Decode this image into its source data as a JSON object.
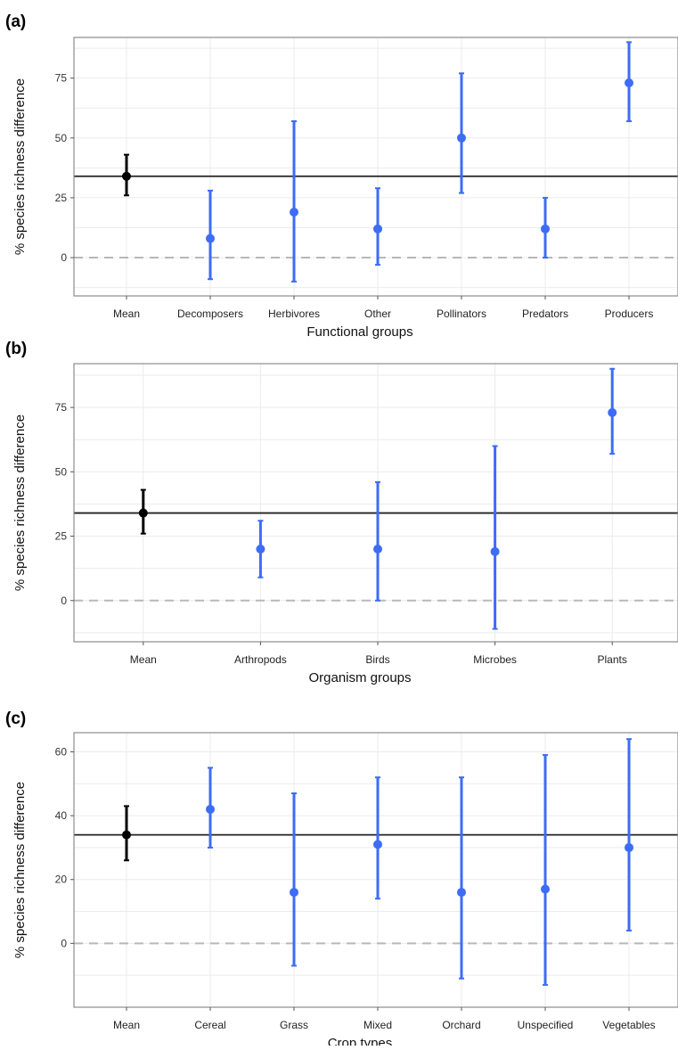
{
  "colors": {
    "mean": "#000000",
    "group": "#3d6cf5",
    "reference_line": "#222222",
    "zero_line": "#b8b8b8",
    "grid": "#ebebeb",
    "frame": "#8c8c8c"
  },
  "chart_data": [
    {
      "type": "scatter",
      "panel_label": "(a)",
      "title": "",
      "xlabel": "Functional groups",
      "ylabel": "% species richness difference",
      "ylim": [
        -16,
        92
      ],
      "yticks": [
        0,
        25,
        50,
        75
      ],
      "categories": [
        "Mean",
        "Decomposers",
        "Herbivores",
        "Other",
        "Pollinators",
        "Predators",
        "Producers"
      ],
      "values": [
        34,
        8,
        19,
        12,
        50,
        12,
        73
      ],
      "lower": [
        26,
        -9,
        -10,
        -3,
        27,
        0,
        57
      ],
      "upper": [
        43,
        28,
        57,
        29,
        77,
        25,
        90
      ],
      "mean_line": 34,
      "zero_line": 0,
      "grid": true,
      "legend": "none"
    },
    {
      "type": "scatter",
      "panel_label": "(b)",
      "title": "",
      "xlabel": "Organism groups",
      "ylabel": "% species richness difference",
      "ylim": [
        -16,
        92
      ],
      "yticks": [
        0,
        25,
        50,
        75
      ],
      "categories": [
        "Mean",
        "Arthropods",
        "Birds",
        "Microbes",
        "Plants"
      ],
      "values": [
        34,
        20,
        20,
        19,
        73
      ],
      "lower": [
        26,
        9,
        0,
        -11,
        57
      ],
      "upper": [
        43,
        31,
        46,
        60,
        90
      ],
      "mean_line": 34,
      "zero_line": 0,
      "grid": true,
      "legend": "none"
    },
    {
      "type": "scatter",
      "panel_label": "(c)",
      "title": "",
      "xlabel": "Crop types",
      "ylabel": "% species richness difference",
      "ylim": [
        -20,
        66
      ],
      "yticks": [
        0,
        20,
        40,
        60
      ],
      "categories": [
        "Mean",
        "Cereal",
        "Grass",
        "Mixed",
        "Orchard",
        "Unspecified",
        "Vegetables"
      ],
      "values": [
        34,
        42,
        16,
        31,
        16,
        17,
        30
      ],
      "lower": [
        26,
        30,
        -7,
        14,
        -11,
        -13,
        4
      ],
      "upper": [
        43,
        55,
        47,
        52,
        52,
        59,
        64
      ],
      "mean_line": 34,
      "zero_line": 0,
      "grid": true,
      "legend": "none"
    }
  ]
}
